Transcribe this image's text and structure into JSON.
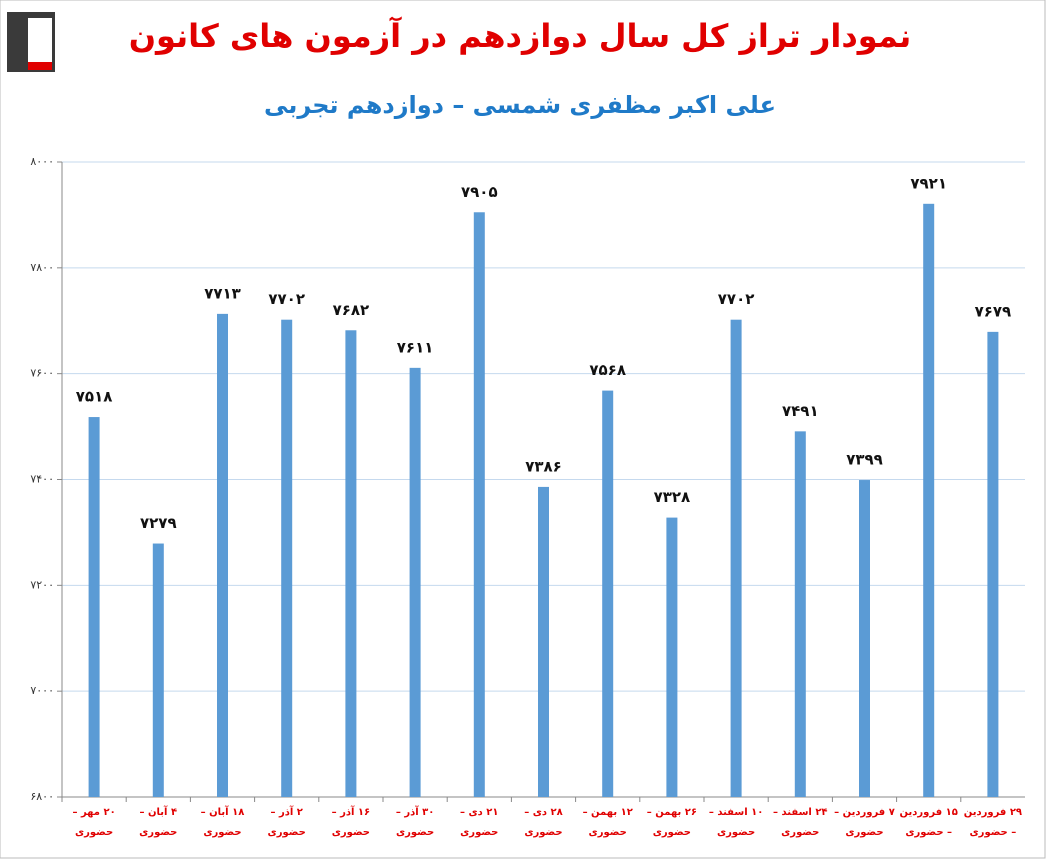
{
  "chart_data": {
    "type": "bar",
    "title": "نمودار تراز کل سال دوازدهم در آزمون های کانون",
    "subtitle": "علی اکبر مظفری شمسی – دوازدهم تجربی",
    "categories": [
      "۲۰ مهر – حضوری",
      "۴ آبان – حضوری",
      "۱۸ آبان – حضوری",
      "۲ آذر – حضوری",
      "۱۶ آذر – حضوری",
      "۳۰ آذر – حضوری",
      "۲۱ دی – حضوری",
      "۲۸ دی – حضوری",
      "۱۲ بهمن – حضوری",
      "۲۶ بهمن – حضوری",
      "۱۰ اسفند – حضوری",
      "۲۴ اسفند – حضوری",
      "۷ فروردین – حضوری",
      "۱۵ فروردین – حضوری",
      "۲۹ فروردین – حضوری"
    ],
    "values": [
      7518,
      7279,
      7713,
      7702,
      7682,
      7611,
      7905,
      7386,
      7568,
      7328,
      7702,
      7491,
      7399,
      7921,
      7679
    ],
    "value_labels": [
      "۷۵۱۸",
      "۷۲۷۹",
      "۷۷۱۳",
      "۷۷۰۲",
      "۷۶۸۲",
      "۷۶۱۱",
      "۷۹۰۵",
      "۷۳۸۶",
      "۷۵۶۸",
      "۷۳۲۸",
      "۷۷۰۲",
      "۷۴۹۱",
      "۷۳۹۹",
      "۷۹۲۱",
      "۷۶۷۹"
    ],
    "color": "#5b9bd5",
    "ylim": [
      6800,
      8000
    ],
    "yticks": [
      {
        "value": 6800,
        "label": "۶۸۰۰"
      },
      {
        "value": 7000,
        "label": "۷۰۰۰"
      },
      {
        "value": 7200,
        "label": "۷۲۰۰"
      },
      {
        "value": 7400,
        "label": "۷۴۰۰"
      },
      {
        "value": 7600,
        "label": "۷۶۰۰"
      },
      {
        "value": 7800,
        "label": "۷۸۰۰"
      },
      {
        "value": 8000,
        "label": "۸۰۰۰"
      }
    ],
    "grid": true
  }
}
